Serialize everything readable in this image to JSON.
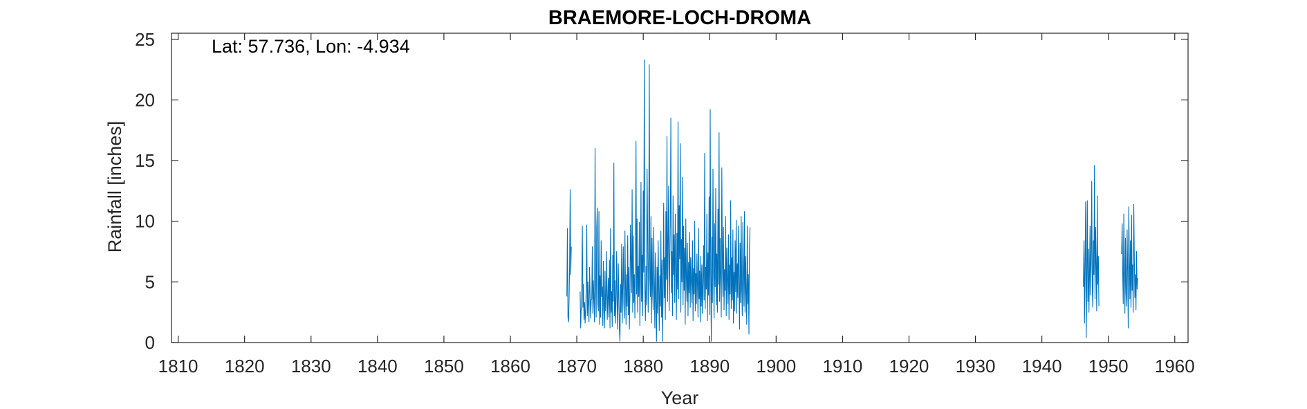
{
  "chart_data": {
    "type": "line",
    "title": "BRAEMORE-LOCH-DROMA",
    "xlabel": "Year",
    "ylabel": "Rainfall [inches]",
    "annotation": "Lat: 57.736, Lon: -4.934",
    "xlim": [
      1809,
      1962
    ],
    "ylim": [
      0,
      25.5
    ],
    "xticks": [
      1810,
      1820,
      1830,
      1840,
      1850,
      1860,
      1870,
      1880,
      1890,
      1900,
      1910,
      1920,
      1930,
      1940,
      1950,
      1960
    ],
    "yticks": [
      0,
      5,
      10,
      15,
      20,
      25
    ],
    "grid": false,
    "line_color": "#0072BD",
    "series": [
      {
        "segments": [
          {
            "x_start": 1868.5,
            "step": 0.0833,
            "values": [
              3.8,
              9.4,
              2.1,
              1.7,
              3.4,
              6.4,
              12.6,
              5.6,
              7.9
            ]
          },
          {
            "x_start": 1870.5,
            "step": 0.0833,
            "values": [
              4.2,
              1.2,
              2.8,
              4.4,
              9.6,
              2.9,
              4.8,
              1.9,
              3.3,
              1.6,
              2.7,
              4.3,
              9.7,
              2.2,
              5.0,
              3.1,
              1.7,
              6.2,
              4.1,
              2.0,
              3.5,
              3.6,
              7.9,
              2.4,
              5.1,
              3.3,
              1.7,
              16.0,
              4.8,
              2.1,
              9.5,
              11.1,
              3.2,
              2.6,
              10.8,
              1.5,
              5.5,
              2.1,
              8.4,
              3.8,
              4.6,
              1.4,
              6.7,
              2.7,
              1.2,
              5.9,
              2.6,
              4.0,
              7.5,
              1.9,
              3.5,
              5.3,
              2.1,
              6.8,
              1.2,
              9.4,
              2.5,
              4.2,
              1.3,
              7.2,
              3.4,
              14.8,
              2.2,
              5.1,
              1.6,
              3.8,
              7.5,
              2.9,
              1.1,
              6.5,
              3.7,
              1.0,
              0.1,
              4.8,
              2.5,
              8.1,
              1.6,
              4.4,
              7.9,
              3.2,
              2.0,
              9.2,
              4.7,
              1.5,
              5.6,
              3.0,
              8.8,
              2.3,
              6.2,
              1.1,
              3.9,
              9.7,
              6.7,
              4.1,
              12.6,
              2.5,
              8.8,
              3.3,
              5.6,
              2.0,
              7.7,
              16.6,
              4.0,
              10.2,
              2.5,
              6.3,
              3.8,
              9.9,
              1.4,
              4.9,
              13.2,
              3.4,
              7.2,
              2.2,
              12.5,
              5.8,
              23.3,
              4.5,
              1.8,
              6.3,
              3.1,
              14.3,
              9.2,
              2.5,
              7.6,
              22.9,
              5.2,
              3.8,
              10.4,
              1.6,
              8.6,
              4.2,
              2.7,
              9.5,
              5.1,
              1.2,
              7.4,
              3.3,
              0.1,
              6.2,
              2.4,
              8.4,
              4.6,
              1.0,
              5.5,
              3.0,
              9.2,
              2.1,
              6.8,
              0.1,
              4.4,
              11.5,
              3.7,
              7.0,
              1.9,
              10.8,
              5.2,
              17.0,
              3.4,
              8.3,
              12.9,
              2.6,
              6.6,
              9.8,
              18.5,
              4.1,
              7.5,
              2.2,
              12.1,
              5.6,
              8.9,
              3.3,
              10.6,
              6.0,
              1.9,
              9.0,
              4.4,
              18.2,
              3.6,
              11.3,
              6.9,
              16.4,
              2.5,
              8.5,
              5.0,
              13.6,
              3.1,
              9.6,
              4.3,
              7.8,
              1.5,
              10.2,
              5.4,
              3.4,
              8.2,
              2.2,
              6.6,
              4.1,
              9.1,
              2.9,
              7.0,
              5.2,
              3.3,
              8.4,
              1.8,
              6.1,
              4.0,
              10.0,
              2.6,
              5.7,
              3.2,
              7.3,
              4.8,
              2.1,
              9.4,
              3.6,
              5.9,
              1.7,
              7.1,
              3.0,
              6.4,
              2.4,
              4.9,
              8.0,
              3.5,
              15.6,
              2.8,
              6.2,
              4.4,
              10.6,
              1.8,
              7.4,
              3.9,
              12.0,
              2.3,
              19.2,
              5.5,
              0.1,
              8.7,
              3.3,
              14.3,
              6.1,
              2.0,
              9.8,
              4.6,
              12.7,
              3.1,
              7.3,
              2.5,
              11.0,
              4.8,
              17.3,
              3.4,
              8.6,
              5.2,
              2.1,
              14.4,
              6.7,
              3.8,
              9.5,
              2.7,
              6.0,
              4.3,
              10.4,
              2.2,
              7.8,
              5.1,
              3.2,
              8.9,
              1.9,
              6.4,
              4.0,
              11.7,
              2.8,
              7.0,
              3.5,
              9.3,
              1.6,
              5.8,
              2.6,
              8.4,
              4.2,
              10.1,
              2.4,
              6.5,
              3.7,
              9.6,
              5.0,
              1.1,
              8.2,
              3.3,
              10.4,
              4.5,
              2.2,
              9.9,
              5.6,
              3.0,
              10.8,
              2.5,
              7.1,
              4.1,
              1.5,
              9.6,
              3.2,
              5.6,
              0.7,
              7.9,
              9.5
            ]
          },
          {
            "x_start": 1946.25,
            "step": 0.0833,
            "values": [
              4.6,
              8.4,
              1.6,
              6.6,
              11.6,
              0.4,
              5.2,
              11.7,
              3.4,
              7.7,
              2.5,
              5.8,
              9.6,
              3.9,
              6.8,
              13.3,
              4.5,
              2.9,
              8.4,
              5.6,
              14.6,
              3.6,
              9.5,
              6.3,
              2.6,
              12.1,
              4.8,
              7.1,
              3.0
            ]
          },
          {
            "x_start": 1952.0,
            "step": 0.0833,
            "values": [
              7.3,
              9.8,
              5.6,
              3.2,
              10.6,
              6.3,
              2.4,
              8.6,
              4.1,
              3.0,
              9.3,
              5.7,
              1.2,
              11.2,
              6.9,
              3.6,
              8.4,
              2.9,
              10.5,
              4.3,
              6.4,
              2.5,
              11.4,
              7.1,
              3.7,
              5.6,
              2.7,
              7.5,
              4.4,
              5.3
            ]
          }
        ]
      }
    ]
  }
}
